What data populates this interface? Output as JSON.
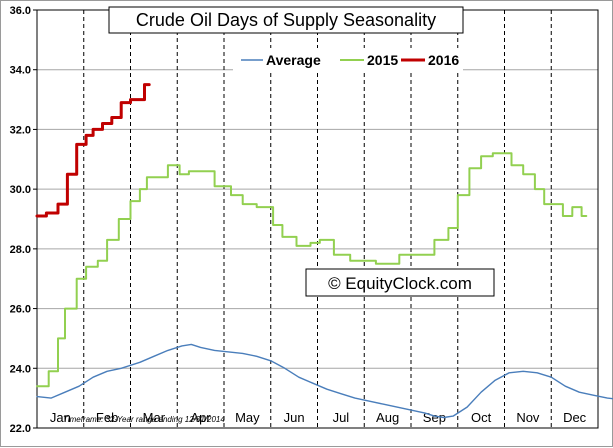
{
  "chart_data": {
    "type": "line",
    "title": "Crude Oil Days of Supply Seasonality",
    "watermark": "© EquityClock.com",
    "footnote": "Timeframe: 32-Year range ending 12/31/2014",
    "categories": [
      "Jan",
      "Feb",
      "Mar",
      "Apr",
      "May",
      "Jun",
      "Jul",
      "Aug",
      "Sep",
      "Oct",
      "Nov",
      "Dec"
    ],
    "ylim": [
      22.0,
      36.0
    ],
    "y_ticks": [
      "22.0",
      "24.0",
      "26.0",
      "28.0",
      "30.0",
      "32.0",
      "34.0",
      "36.0"
    ],
    "grid": "horizontal solid, vertical dashed at month boundaries",
    "legend_position": "top-center",
    "series": [
      {
        "name": "Average",
        "color": "#4a7ebb",
        "style": "smooth",
        "points": [
          [
            0.0,
            23.05
          ],
          [
            0.3,
            23.0
          ],
          [
            0.6,
            23.2
          ],
          [
            0.9,
            23.4
          ],
          [
            1.2,
            23.7
          ],
          [
            1.5,
            23.9
          ],
          [
            1.8,
            24.0
          ],
          [
            2.0,
            24.1
          ],
          [
            2.2,
            24.2
          ],
          [
            2.5,
            24.4
          ],
          [
            2.8,
            24.6
          ],
          [
            3.1,
            24.75
          ],
          [
            3.3,
            24.8
          ],
          [
            3.5,
            24.7
          ],
          [
            3.8,
            24.6
          ],
          [
            4.1,
            24.55
          ],
          [
            4.4,
            24.5
          ],
          [
            4.7,
            24.4
          ],
          [
            5.0,
            24.25
          ],
          [
            5.3,
            24.0
          ],
          [
            5.6,
            23.7
          ],
          [
            5.9,
            23.5
          ],
          [
            6.2,
            23.3
          ],
          [
            6.5,
            23.15
          ],
          [
            6.8,
            23.0
          ],
          [
            7.1,
            22.9
          ],
          [
            7.4,
            22.8
          ],
          [
            7.7,
            22.7
          ],
          [
            8.0,
            22.6
          ],
          [
            8.3,
            22.5
          ],
          [
            8.5,
            22.4
          ],
          [
            8.7,
            22.35
          ],
          [
            8.9,
            22.4
          ],
          [
            9.2,
            22.7
          ],
          [
            9.5,
            23.2
          ],
          [
            9.8,
            23.6
          ],
          [
            10.1,
            23.85
          ],
          [
            10.4,
            23.9
          ],
          [
            10.7,
            23.85
          ],
          [
            11.0,
            23.7
          ],
          [
            11.3,
            23.4
          ],
          [
            11.6,
            23.2
          ],
          [
            11.9,
            23.1
          ],
          [
            12.2,
            23.0
          ],
          [
            12.5,
            22.95
          ],
          [
            12.8,
            22.9
          ],
          [
            13.0,
            22.9
          ]
        ]
      },
      {
        "name": "2015",
        "color": "#92d050",
        "style": "step",
        "points": [
          [
            0.0,
            23.4
          ],
          [
            0.25,
            23.4
          ],
          [
            0.25,
            23.9
          ],
          [
            0.45,
            23.9
          ],
          [
            0.45,
            25.0
          ],
          [
            0.6,
            25.0
          ],
          [
            0.6,
            26.0
          ],
          [
            0.85,
            26.0
          ],
          [
            0.85,
            27.0
          ],
          [
            1.05,
            27.0
          ],
          [
            1.05,
            27.4
          ],
          [
            1.3,
            27.4
          ],
          [
            1.3,
            27.6
          ],
          [
            1.5,
            27.6
          ],
          [
            1.5,
            28.3
          ],
          [
            1.75,
            28.3
          ],
          [
            1.75,
            29.0
          ],
          [
            2.0,
            29.0
          ],
          [
            2.0,
            29.6
          ],
          [
            2.2,
            29.6
          ],
          [
            2.2,
            30.0
          ],
          [
            2.35,
            30.0
          ],
          [
            2.35,
            30.4
          ],
          [
            2.8,
            30.4
          ],
          [
            2.8,
            30.8
          ],
          [
            3.05,
            30.8
          ],
          [
            3.05,
            30.5
          ],
          [
            3.25,
            30.5
          ],
          [
            3.25,
            30.6
          ],
          [
            3.8,
            30.6
          ],
          [
            3.8,
            30.1
          ],
          [
            4.15,
            30.1
          ],
          [
            4.15,
            29.8
          ],
          [
            4.4,
            29.8
          ],
          [
            4.4,
            29.5
          ],
          [
            4.7,
            29.5
          ],
          [
            4.7,
            29.4
          ],
          [
            5.05,
            29.4
          ],
          [
            5.05,
            28.8
          ],
          [
            5.25,
            28.8
          ],
          [
            5.25,
            28.4
          ],
          [
            5.55,
            28.4
          ],
          [
            5.55,
            28.1
          ],
          [
            5.85,
            28.1
          ],
          [
            5.85,
            28.2
          ],
          [
            6.05,
            28.2
          ],
          [
            6.05,
            28.3
          ],
          [
            6.35,
            28.3
          ],
          [
            6.35,
            27.8
          ],
          [
            6.7,
            27.8
          ],
          [
            6.7,
            27.6
          ],
          [
            7.25,
            27.6
          ],
          [
            7.25,
            27.5
          ],
          [
            7.75,
            27.5
          ],
          [
            7.75,
            27.8
          ],
          [
            8.5,
            27.8
          ],
          [
            8.5,
            28.3
          ],
          [
            8.8,
            28.3
          ],
          [
            8.8,
            28.7
          ],
          [
            9.0,
            28.7
          ],
          [
            9.0,
            29.8
          ],
          [
            9.25,
            29.8
          ],
          [
            9.25,
            30.7
          ],
          [
            9.5,
            30.7
          ],
          [
            9.5,
            31.1
          ],
          [
            9.75,
            31.1
          ],
          [
            9.75,
            31.2
          ],
          [
            10.15,
            31.2
          ],
          [
            10.15,
            30.8
          ],
          [
            10.4,
            30.8
          ],
          [
            10.4,
            30.5
          ],
          [
            10.65,
            30.5
          ],
          [
            10.65,
            30.0
          ],
          [
            10.85,
            30.0
          ],
          [
            10.85,
            29.5
          ],
          [
            11.25,
            29.5
          ],
          [
            11.25,
            29.1
          ],
          [
            11.45,
            29.1
          ],
          [
            11.45,
            29.4
          ],
          [
            11.65,
            29.4
          ],
          [
            11.65,
            29.1
          ],
          [
            11.75,
            29.1
          ]
        ]
      },
      {
        "name": "2016",
        "color": "#c00000",
        "style": "step",
        "points": [
          [
            0.0,
            29.1
          ],
          [
            0.2,
            29.1
          ],
          [
            0.2,
            29.2
          ],
          [
            0.45,
            29.2
          ],
          [
            0.45,
            29.5
          ],
          [
            0.65,
            29.5
          ],
          [
            0.65,
            30.5
          ],
          [
            0.85,
            30.5
          ],
          [
            0.85,
            31.5
          ],
          [
            1.05,
            31.5
          ],
          [
            1.05,
            31.8
          ],
          [
            1.2,
            31.8
          ],
          [
            1.2,
            32.0
          ],
          [
            1.4,
            32.0
          ],
          [
            1.4,
            32.2
          ],
          [
            1.6,
            32.2
          ],
          [
            1.6,
            32.4
          ],
          [
            1.8,
            32.4
          ],
          [
            1.8,
            32.9
          ],
          [
            2.0,
            32.9
          ],
          [
            2.0,
            33.0
          ],
          [
            2.3,
            33.0
          ],
          [
            2.3,
            33.5
          ],
          [
            2.4,
            33.5
          ]
        ]
      }
    ]
  }
}
